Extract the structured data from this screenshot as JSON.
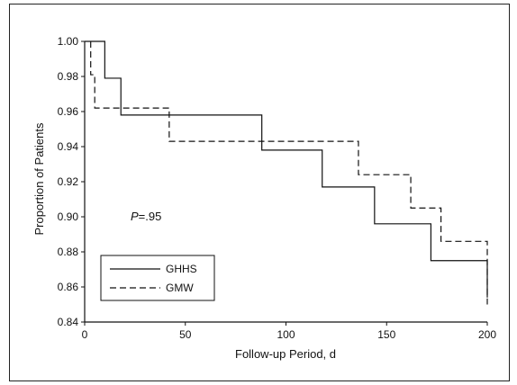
{
  "chart_data": {
    "type": "line",
    "step": true,
    "xlabel": "Follow-up Period, d",
    "ylabel": "Proportion of Patients",
    "xlim": [
      0,
      200
    ],
    "ylim": [
      0.84,
      1.0
    ],
    "xticks": [
      "0",
      "50",
      "100",
      "150",
      "200"
    ],
    "yticks": [
      "0.84",
      "0.86",
      "0.88",
      "0.90",
      "0.92",
      "0.94",
      "0.96",
      "0.98",
      "1.00"
    ],
    "grid": false,
    "legend_position": "bottom-left",
    "annotation": {
      "italic": "P",
      "rest": "=.95"
    },
    "series": [
      {
        "name": "GHHS",
        "style": "solid",
        "color": "#111111",
        "x": [
          0,
          10,
          18,
          88,
          118,
          144,
          172,
          200
        ],
        "y": [
          1.0,
          0.979,
          0.958,
          0.938,
          0.917,
          0.896,
          0.875,
          0.854
        ]
      },
      {
        "name": "GMW",
        "style": "dashed",
        "color": "#111111",
        "x": [
          3,
          5,
          42,
          136,
          162,
          177,
          200
        ],
        "y": [
          0.981,
          0.962,
          0.943,
          0.924,
          0.905,
          0.886,
          0.85
        ]
      }
    ]
  }
}
